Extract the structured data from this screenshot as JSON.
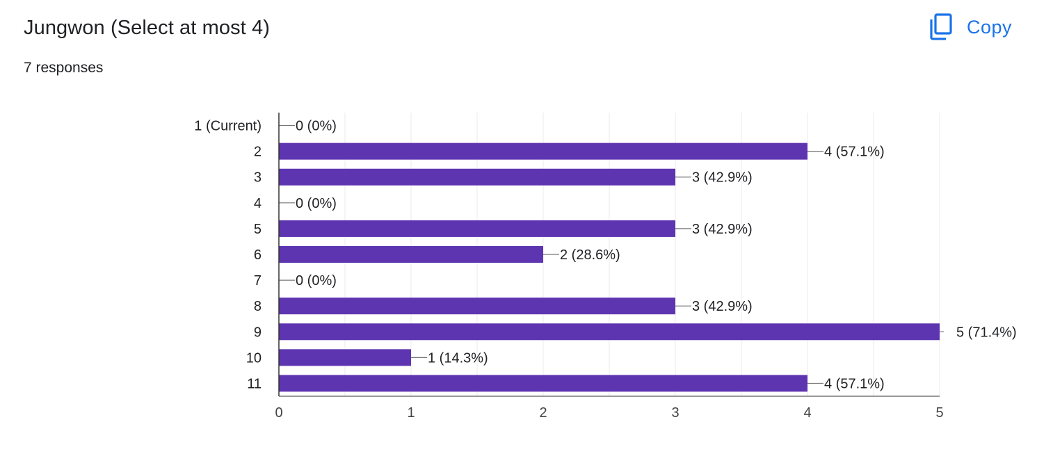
{
  "header": {
    "title": "Jungwon (Select at most 4)",
    "responses": "7 responses",
    "copy_label": "Copy",
    "copy_icon": "copy-icon"
  },
  "colors": {
    "bar": "#5e35b1",
    "accent": "#1a73e8",
    "grid": "#ebebeb",
    "axis": "#333333",
    "text": "#202124"
  },
  "chart_data": {
    "type": "bar",
    "orientation": "horizontal",
    "categories": [
      "1 (Current)",
      "2",
      "3",
      "4",
      "5",
      "6",
      "7",
      "8",
      "9",
      "10",
      "11"
    ],
    "values": [
      0,
      4,
      3,
      0,
      3,
      2,
      0,
      3,
      5,
      1,
      4
    ],
    "data_labels": [
      "0 (0%)",
      "4 (57.1%)",
      "3 (42.9%)",
      "0 (0%)",
      "3 (42.9%)",
      "2 (28.6%)",
      "0 (0%)",
      "3 (42.9%)",
      "5 (71.4%)",
      "1 (14.3%)",
      "4 (57.1%)"
    ],
    "xlim": [
      0,
      5
    ],
    "xticks": [
      0,
      1,
      2,
      3,
      4,
      5
    ],
    "grid": true
  }
}
